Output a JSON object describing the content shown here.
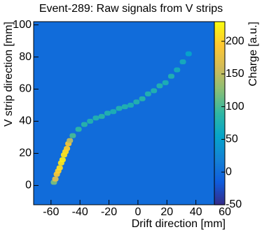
{
  "chart_data": {
    "type": "heatmap",
    "title": "Event-289: Raw signals from V strips",
    "x_label": "Drift direction [mm]",
    "y_label": "V strip direction [mm]",
    "z_label": "Charge [a.u.]",
    "xlim": [
      -72,
      60
    ],
    "xticks": [
      -60,
      -40,
      -20,
      0,
      20,
      40,
      60
    ],
    "ylim": [
      -12,
      102
    ],
    "yticks": [
      0,
      20,
      40,
      60,
      80,
      100
    ],
    "zlim": [
      -50,
      230
    ],
    "zticks": [
      -50,
      0,
      50,
      100,
      150,
      200
    ],
    "palette": [
      "#352a87",
      "#0f5cdd",
      "#1481d6",
      "#06a4ca",
      "#2eb7a4",
      "#87bf77",
      "#d1bb59",
      "#fec832",
      "#f9fb0e"
    ],
    "background": 0,
    "x": [
      -58,
      -57,
      -56,
      -55,
      -54,
      -53,
      -52,
      -51,
      -50,
      -49,
      -48,
      -47,
      -45,
      -41,
      -37,
      -33,
      -29,
      -25,
      -21,
      -17,
      -13,
      -9,
      -5,
      -1,
      3,
      7,
      11,
      15,
      19,
      23,
      27,
      31,
      35
    ],
    "y": [
      2,
      4,
      7,
      9,
      11,
      14,
      16,
      19,
      21,
      23,
      26,
      28,
      31,
      35,
      38,
      40,
      42,
      43,
      45,
      46,
      48,
      49,
      50,
      52,
      54,
      57,
      59,
      62,
      64,
      68,
      72,
      77,
      82
    ],
    "values": [
      120,
      170,
      190,
      200,
      210,
      215,
      220,
      215,
      210,
      200,
      190,
      150,
      100,
      90,
      85,
      80,
      80,
      85,
      80,
      75,
      80,
      80,
      75,
      80,
      85,
      80,
      80,
      80,
      75,
      80,
      70,
      70,
      55
    ]
  }
}
